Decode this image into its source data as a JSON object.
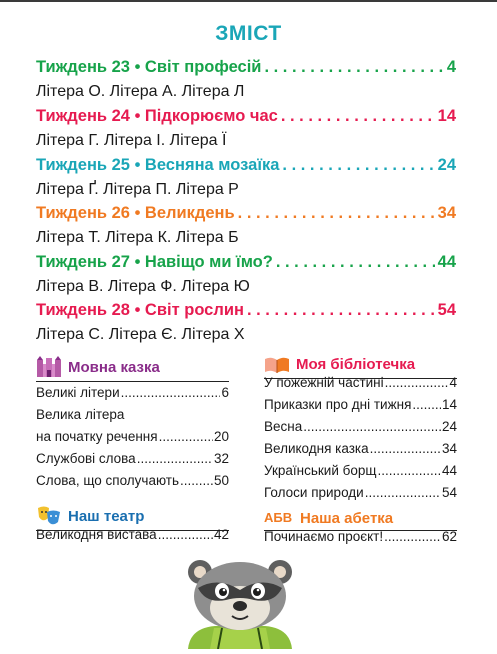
{
  "title": "ЗМІСТ",
  "weeks": [
    {
      "label": "Тиждень 23 • Світ професій",
      "page": "4",
      "color": "#17a34a",
      "letters": "Літера О. Літера А. Літера Л"
    },
    {
      "label": "Тиждень 24 • Підкорюємо час",
      "page": "14",
      "color": "#e61b50",
      "letters": "Літера Г. Літера І. Літера Ї"
    },
    {
      "label": "Тиждень 25 • Весняна мозаїка",
      "page": "24",
      "color": "#1aa6b7",
      "letters": "Літера Ґ. Літера П. Літера Р"
    },
    {
      "label": "Тиждень 26 • Великдень",
      "page": "34",
      "color": "#f07a22",
      "letters": "Літера Т. Літера К. Літера Б"
    },
    {
      "label": "Тиждень 27 • Навіщо ми їмо?",
      "page": "44",
      "color": "#17a34a",
      "letters": "Літера В. Літера Ф. Літера Ю"
    },
    {
      "label": "Тиждень 28 • Світ рослин",
      "page": "54",
      "color": "#e61b50",
      "letters": "Літера С. Літера Є. Літера Х"
    }
  ],
  "sections": {
    "movna_kazka": {
      "title": "Мовна казка",
      "color": "#8a2d8a",
      "icon": "castle-icon",
      "items": [
        {
          "text": "Великі літери",
          "page": "6"
        },
        {
          "text": "Велика літера",
          "page": ""
        },
        {
          "text": "на початку речення",
          "page": "20"
        },
        {
          "text": "Службові слова",
          "page": "32"
        },
        {
          "text": "Слова, що сполучають",
          "page": "50"
        }
      ]
    },
    "nash_teatr": {
      "title": "Наш театр",
      "color": "#1a6fb0",
      "icon": "theater-masks-icon",
      "items": [
        {
          "text": "Великодня вистава",
          "page": "42"
        }
      ]
    },
    "moia_bibliotechka": {
      "title": "Моя бібліотечка",
      "color": "#e61b50",
      "icon": "open-book-icon",
      "items": [
        {
          "text": "У пожежній частині",
          "page": "4"
        },
        {
          "text": "Приказки про дні тижня",
          "page": "14"
        },
        {
          "text": "Весна",
          "page": "24"
        },
        {
          "text": "Великодня казка",
          "page": "34"
        },
        {
          "text": "Український борщ",
          "page": "44"
        },
        {
          "text": "Голоси природи",
          "page": "54"
        }
      ]
    },
    "nasha_abetka": {
      "title": "Наша абетка",
      "color": "#f07a22",
      "icon": "abc-blocks-icon",
      "icon_text": "АБВ",
      "items": [
        {
          "text": "Починаємо проєкт!",
          "page": "62"
        }
      ]
    }
  },
  "mascot": "raccoon-illustration"
}
